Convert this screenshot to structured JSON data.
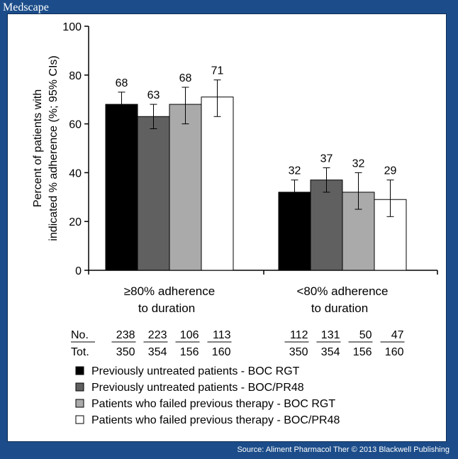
{
  "brand": "Medscape",
  "footer": "Source: Aliment Pharmacol Ther © 2013 Blackwell Publishing",
  "chart_data": {
    "type": "bar",
    "title": "",
    "ylabel": [
      "Percent of patients with",
      "indicated % adherence (%; 95% CIs)"
    ],
    "xlabel": "",
    "ylim": [
      0,
      100
    ],
    "yticks": [
      0,
      20,
      40,
      60,
      80,
      100
    ],
    "categories": [
      {
        "lines": [
          "≥80% adherence",
          "to duration"
        ]
      },
      {
        "lines": [
          "<80% adherence",
          "to duration"
        ]
      }
    ],
    "series": [
      {
        "name": "Previously untreated patients - BOC RGT",
        "color": "#000000",
        "values": [
          68,
          32
        ],
        "ci": [
          [
            63,
            73
          ],
          [
            27,
            37
          ]
        ],
        "counts": [
          [
            "238",
            "350"
          ],
          [
            "112",
            "350"
          ]
        ]
      },
      {
        "name": "Previously untreated patients - BOC/PR48",
        "color": "#606060",
        "values": [
          63,
          37
        ],
        "ci": [
          [
            58,
            68
          ],
          [
            32,
            42
          ]
        ],
        "counts": [
          [
            "223",
            "354"
          ],
          [
            "131",
            "354"
          ]
        ]
      },
      {
        "name": "Patients who failed previous therapy - BOC RGT",
        "color": "#aaaaaa",
        "values": [
          68,
          32
        ],
        "ci": [
          [
            60,
            75
          ],
          [
            25,
            40
          ]
        ],
        "counts": [
          [
            "106",
            "156"
          ],
          [
            "50",
            "156"
          ]
        ]
      },
      {
        "name": "Patients who failed previous therapy - BOC/PR48",
        "color": "#ffffff",
        "values": [
          71,
          29
        ],
        "ci": [
          [
            63,
            78
          ],
          [
            22,
            37
          ]
        ],
        "counts": [
          [
            "113",
            "160"
          ],
          [
            "47",
            "160"
          ]
        ]
      }
    ],
    "count_labels": {
      "numerator": "No.",
      "denominator": "Tot."
    }
  }
}
